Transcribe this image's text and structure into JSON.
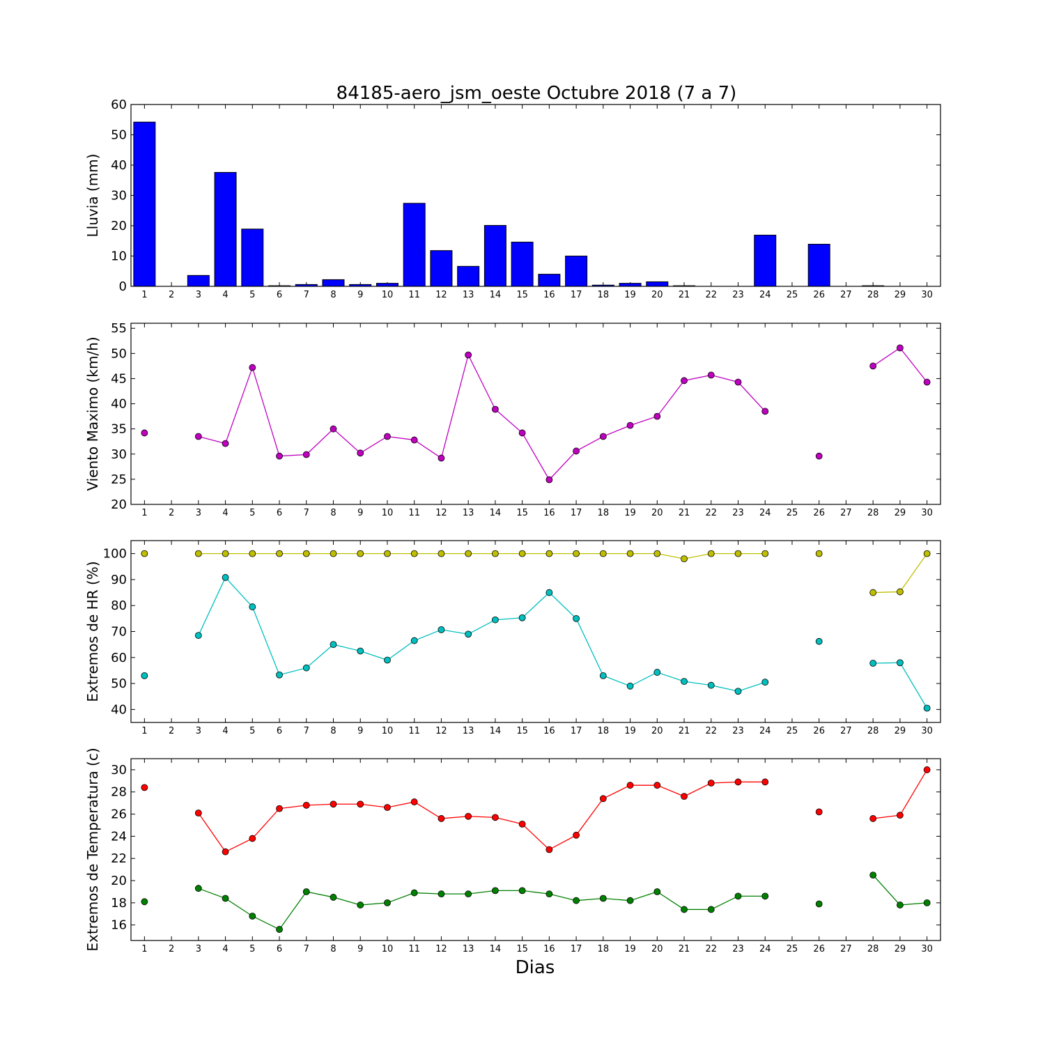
{
  "figure": {
    "title": "84185-aero_jsm_oeste Octubre 2018  (7 a 7)",
    "xlabel": "Dias"
  },
  "chart_data": [
    {
      "type": "bar",
      "ylabel": "Lluvia (mm)",
      "ylim": [
        0,
        60
      ],
      "yticks": [
        0,
        10,
        20,
        30,
        40,
        50,
        60
      ],
      "categories": [
        "1",
        "2",
        "3",
        "4",
        "5",
        "6",
        "7",
        "8",
        "9",
        "10",
        "11",
        "12",
        "13",
        "14",
        "15",
        "16",
        "17",
        "18",
        "19",
        "20",
        "21",
        "22",
        "23",
        "24",
        "25",
        "26",
        "27",
        "28",
        "29",
        "30"
      ],
      "series": [
        {
          "color": "#0000ff",
          "values": [
            54.2,
            0,
            3.6,
            37.6,
            18.9,
            0.2,
            0.6,
            2.2,
            0.6,
            1.0,
            27.4,
            11.8,
            6.6,
            20.1,
            14.6,
            4.0,
            10.0,
            0.4,
            1.0,
            1.5,
            0.2,
            0,
            0,
            16.9,
            0,
            13.9,
            0,
            0.2,
            0,
            0
          ]
        }
      ]
    },
    {
      "type": "line",
      "ylabel": "Viento Maximo (km/h)",
      "ylim": [
        20,
        56
      ],
      "yticks": [
        20,
        25,
        30,
        35,
        40,
        45,
        50,
        55
      ],
      "categories": [
        "1",
        "2",
        "3",
        "4",
        "5",
        "6",
        "7",
        "8",
        "9",
        "10",
        "11",
        "12",
        "13",
        "14",
        "15",
        "16",
        "17",
        "18",
        "19",
        "20",
        "21",
        "22",
        "23",
        "24",
        "25",
        "26",
        "27",
        "28",
        "29",
        "30"
      ],
      "series": [
        {
          "color": "#bf00bf",
          "values": [
            34.2,
            null,
            33.5,
            32.1,
            47.2,
            29.6,
            29.9,
            35.0,
            30.2,
            33.5,
            32.8,
            29.2,
            49.7,
            38.9,
            34.2,
            24.9,
            30.6,
            33.5,
            35.7,
            37.5,
            44.6,
            45.7,
            44.3,
            38.5,
            null,
            29.6,
            null,
            47.5,
            51.1,
            44.3
          ]
        }
      ]
    },
    {
      "type": "line",
      "ylabel": "Extremos de HR (%)",
      "ylim": [
        35,
        105
      ],
      "yticks": [
        40,
        50,
        60,
        70,
        80,
        90,
        100
      ],
      "categories": [
        "1",
        "2",
        "3",
        "4",
        "5",
        "6",
        "7",
        "8",
        "9",
        "10",
        "11",
        "12",
        "13",
        "14",
        "15",
        "16",
        "17",
        "18",
        "19",
        "20",
        "21",
        "22",
        "23",
        "24",
        "25",
        "26",
        "27",
        "28",
        "29",
        "30"
      ],
      "series": [
        {
          "color": "#bfbf00",
          "values": [
            100,
            null,
            100,
            100,
            100,
            100,
            100,
            100,
            100,
            100,
            100,
            100,
            100,
            100,
            100,
            100,
            100,
            100,
            100,
            100,
            98,
            100,
            100,
            100,
            null,
            100,
            null,
            85,
            85.3,
            100
          ]
        },
        {
          "color": "#00bfbf",
          "values": [
            53,
            null,
            68.5,
            90.8,
            79.5,
            53.3,
            56,
            65,
            62.5,
            59,
            66.5,
            70.7,
            69,
            74.5,
            75.3,
            85,
            75,
            53,
            49,
            54.3,
            50.8,
            49.3,
            47,
            50.5,
            null,
            66.2,
            null,
            57.8,
            58,
            40.5
          ]
        }
      ]
    },
    {
      "type": "line",
      "ylabel": "Extremos de Temperatura (c)",
      "ylim": [
        14.6,
        31
      ],
      "yticks": [
        16,
        18,
        20,
        22,
        24,
        26,
        28,
        30
      ],
      "categories": [
        "1",
        "2",
        "3",
        "4",
        "5",
        "6",
        "7",
        "8",
        "9",
        "10",
        "11",
        "12",
        "13",
        "14",
        "15",
        "16",
        "17",
        "18",
        "19",
        "20",
        "21",
        "22",
        "23",
        "24",
        "25",
        "26",
        "27",
        "28",
        "29",
        "30"
      ],
      "series": [
        {
          "color": "#ff0000",
          "values": [
            28.4,
            null,
            26.1,
            22.6,
            23.8,
            26.5,
            26.8,
            26.9,
            26.9,
            26.6,
            27.1,
            25.6,
            25.8,
            25.7,
            25.1,
            22.8,
            24.1,
            27.4,
            28.6,
            28.6,
            27.6,
            28.8,
            28.9,
            28.9,
            null,
            26.2,
            null,
            25.6,
            25.9,
            30.0
          ]
        },
        {
          "color": "#008000",
          "values": [
            18.1,
            null,
            19.3,
            18.4,
            16.8,
            15.6,
            19.0,
            18.5,
            17.8,
            18.0,
            18.9,
            18.8,
            18.8,
            19.1,
            19.1,
            18.8,
            18.2,
            18.4,
            18.2,
            19.0,
            17.4,
            17.4,
            18.6,
            18.6,
            null,
            17.9,
            null,
            20.5,
            17.8,
            18.0
          ]
        }
      ]
    }
  ]
}
